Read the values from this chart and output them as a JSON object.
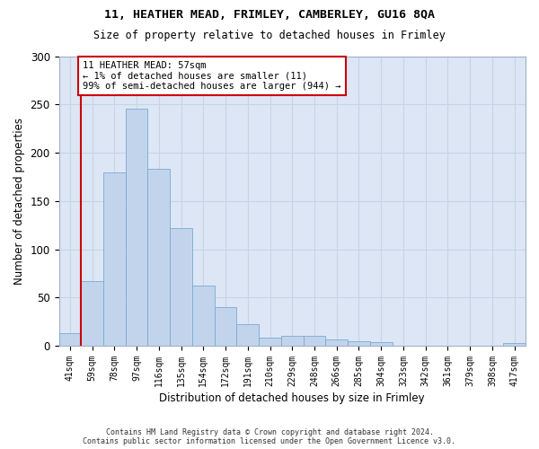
{
  "title1": "11, HEATHER MEAD, FRIMLEY, CAMBERLEY, GU16 8QA",
  "title2": "Size of property relative to detached houses in Frimley",
  "xlabel": "Distribution of detached houses by size in Frimley",
  "ylabel": "Number of detached properties",
  "categories": [
    "41sqm",
    "59sqm",
    "78sqm",
    "97sqm",
    "116sqm",
    "135sqm",
    "154sqm",
    "172sqm",
    "191sqm",
    "210sqm",
    "229sqm",
    "248sqm",
    "266sqm",
    "285sqm",
    "304sqm",
    "323sqm",
    "342sqm",
    "361sqm",
    "379sqm",
    "398sqm",
    "417sqm"
  ],
  "values": [
    13,
    67,
    180,
    246,
    183,
    122,
    62,
    40,
    22,
    8,
    10,
    10,
    7,
    5,
    4,
    0,
    0,
    0,
    0,
    0,
    3
  ],
  "bar_color": "#c2d4ec",
  "bar_edge_color": "#7aaad0",
  "vertical_line_color": "#cc0000",
  "vertical_line_x": 0.5,
  "annotation_line1": "11 HEATHER MEAD: 57sqm",
  "annotation_line2": "← 1% of detached houses are smaller (11)",
  "annotation_line3": "99% of semi-detached houses are larger (944) →",
  "annotation_box_bg": "#ffffff",
  "annotation_box_edge": "#cc0000",
  "ylim": [
    0,
    300
  ],
  "yticks": [
    0,
    50,
    100,
    150,
    200,
    250,
    300
  ],
  "grid_color": "#c8d4e4",
  "bg_color": "#dce6f5",
  "fig_bg_color": "#ffffff",
  "footer1": "Contains HM Land Registry data © Crown copyright and database right 2024.",
  "footer2": "Contains public sector information licensed under the Open Government Licence v3.0."
}
